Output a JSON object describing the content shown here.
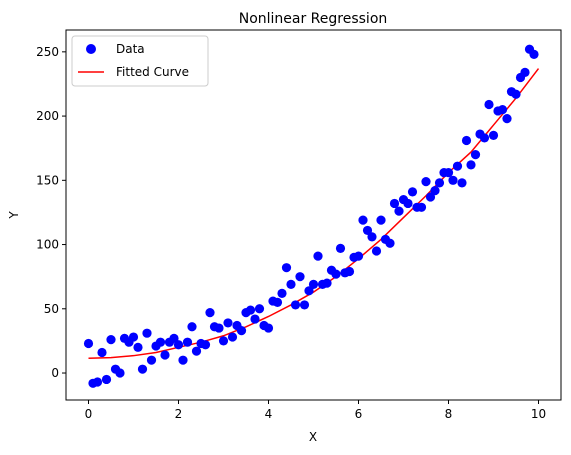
{
  "chart_data": {
    "type": "scatter",
    "title": "Nonlinear Regression",
    "xlabel": "X",
    "ylabel": "Y",
    "xlim": [
      -0.5,
      10.5
    ],
    "ylim": [
      -21,
      267
    ],
    "xticks": [
      0,
      2,
      4,
      6,
      8,
      10
    ],
    "yticks": [
      0,
      50,
      100,
      150,
      200,
      250
    ],
    "grid": false,
    "legend": "top-left",
    "series": [
      {
        "name": "Data",
        "kind": "scatter",
        "color": "#0000ff",
        "points": [
          [
            0.0,
            23
          ],
          [
            0.1,
            -8
          ],
          [
            0.2,
            -7
          ],
          [
            0.3,
            16
          ],
          [
            0.4,
            -5
          ],
          [
            0.5,
            26
          ],
          [
            0.6,
            3
          ],
          [
            0.7,
            0
          ],
          [
            0.8,
            27
          ],
          [
            0.9,
            24
          ],
          [
            1.0,
            28
          ],
          [
            1.1,
            20
          ],
          [
            1.2,
            3
          ],
          [
            1.3,
            31
          ],
          [
            1.4,
            10
          ],
          [
            1.5,
            21
          ],
          [
            1.6,
            24
          ],
          [
            1.7,
            14
          ],
          [
            1.8,
            24
          ],
          [
            1.9,
            27
          ],
          [
            2.0,
            22
          ],
          [
            2.1,
            10
          ],
          [
            2.2,
            24
          ],
          [
            2.3,
            36
          ],
          [
            2.4,
            17
          ],
          [
            2.5,
            23
          ],
          [
            2.6,
            22
          ],
          [
            2.7,
            47
          ],
          [
            2.8,
            36
          ],
          [
            2.9,
            35
          ],
          [
            3.0,
            25
          ],
          [
            3.1,
            39
          ],
          [
            3.2,
            28
          ],
          [
            3.3,
            37
          ],
          [
            3.4,
            33
          ],
          [
            3.5,
            47
          ],
          [
            3.6,
            49
          ],
          [
            3.7,
            42
          ],
          [
            3.8,
            50
          ],
          [
            3.9,
            37
          ],
          [
            4.0,
            35
          ],
          [
            4.1,
            56
          ],
          [
            4.2,
            55
          ],
          [
            4.3,
            62
          ],
          [
            4.4,
            82
          ],
          [
            4.5,
            69
          ],
          [
            4.6,
            53
          ],
          [
            4.7,
            75
          ],
          [
            4.8,
            53
          ],
          [
            4.9,
            64
          ],
          [
            5.0,
            69
          ],
          [
            5.1,
            91
          ],
          [
            5.2,
            69
          ],
          [
            5.3,
            70
          ],
          [
            5.4,
            80
          ],
          [
            5.5,
            77
          ],
          [
            5.6,
            97
          ],
          [
            5.7,
            78
          ],
          [
            5.8,
            79
          ],
          [
            5.9,
            90
          ],
          [
            6.0,
            91
          ],
          [
            6.1,
            119
          ],
          [
            6.2,
            111
          ],
          [
            6.3,
            106
          ],
          [
            6.4,
            95
          ],
          [
            6.5,
            119
          ],
          [
            6.6,
            104
          ],
          [
            6.7,
            101
          ],
          [
            6.8,
            132
          ],
          [
            6.9,
            126
          ],
          [
            7.0,
            135
          ],
          [
            7.1,
            132
          ],
          [
            7.2,
            141
          ],
          [
            7.3,
            129
          ],
          [
            7.4,
            129
          ],
          [
            7.5,
            149
          ],
          [
            7.6,
            137
          ],
          [
            7.7,
            142
          ],
          [
            7.8,
            148
          ],
          [
            7.9,
            156
          ],
          [
            8.0,
            156
          ],
          [
            8.1,
            150
          ],
          [
            8.2,
            161
          ],
          [
            8.3,
            148
          ],
          [
            8.4,
            181
          ],
          [
            8.5,
            162
          ],
          [
            8.6,
            170
          ],
          [
            8.7,
            186
          ],
          [
            8.8,
            183
          ],
          [
            8.9,
            209
          ],
          [
            9.0,
            185
          ],
          [
            9.1,
            204
          ],
          [
            9.2,
            205
          ],
          [
            9.3,
            198
          ],
          [
            9.4,
            219
          ],
          [
            9.5,
            217
          ],
          [
            9.6,
            230
          ],
          [
            9.7,
            234
          ],
          [
            9.8,
            252
          ],
          [
            9.9,
            248
          ]
        ]
      },
      {
        "name": "Fitted Curve",
        "kind": "line",
        "color": "#ff0000",
        "points": [
          [
            0,
            11.5
          ],
          [
            0.5,
            12
          ],
          [
            1,
            13.5
          ],
          [
            1.5,
            16
          ],
          [
            2,
            20
          ],
          [
            2.5,
            24
          ],
          [
            3,
            29
          ],
          [
            3.5,
            36
          ],
          [
            4,
            44
          ],
          [
            4.5,
            53
          ],
          [
            5,
            63
          ],
          [
            5.5,
            75
          ],
          [
            6,
            89
          ],
          [
            6.5,
            104
          ],
          [
            7,
            121
          ],
          [
            7.5,
            138
          ],
          [
            8,
            156
          ],
          [
            8.5,
            172
          ],
          [
            9,
            193
          ],
          [
            9.5,
            214
          ],
          [
            10,
            237
          ]
        ]
      }
    ]
  }
}
